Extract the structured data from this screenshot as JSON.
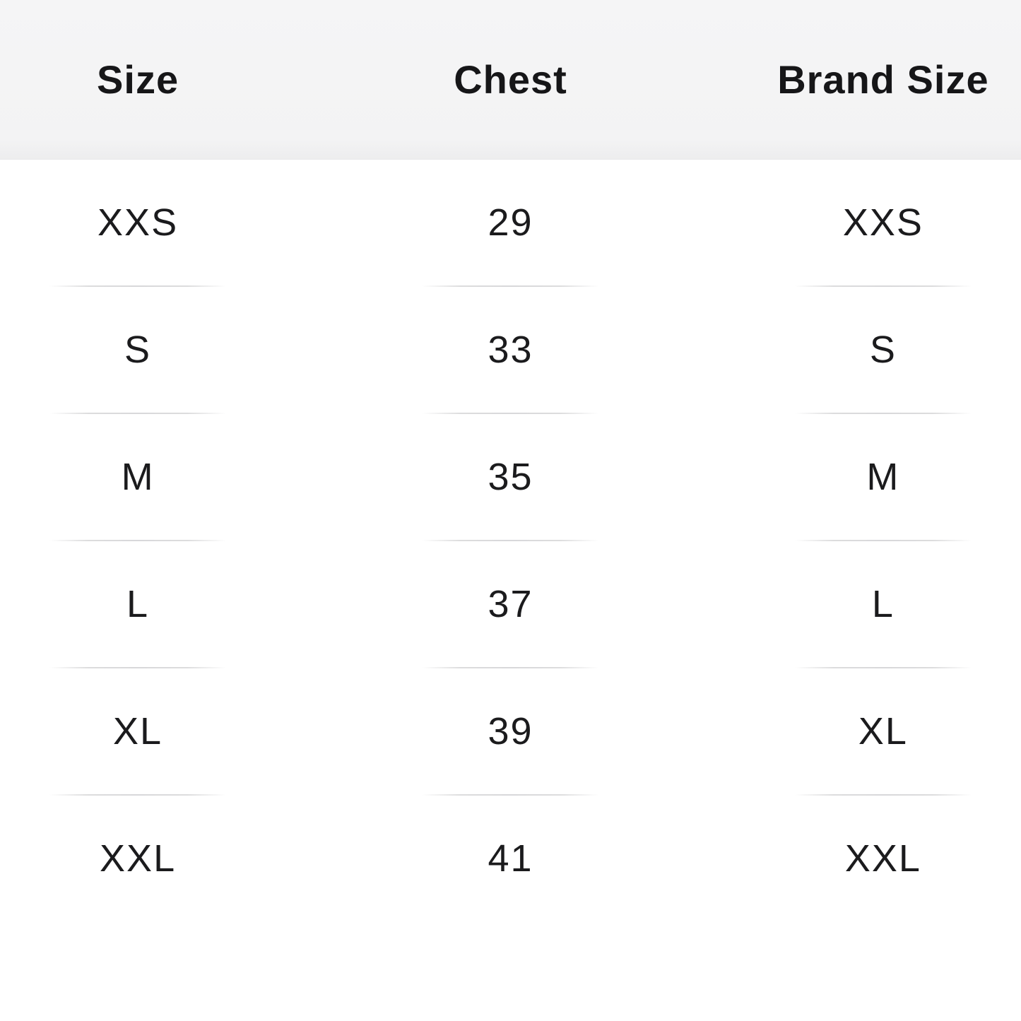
{
  "size_chart": {
    "columns": {
      "size": "Size",
      "chest": "Chest",
      "brand_size": "Brand Size"
    },
    "rows": [
      {
        "size": "XXS",
        "chest": "29",
        "brand_size": "XXS"
      },
      {
        "size": "S",
        "chest": "33",
        "brand_size": "S"
      },
      {
        "size": "M",
        "chest": "35",
        "brand_size": "M"
      },
      {
        "size": "L",
        "chest": "37",
        "brand_size": "L"
      },
      {
        "size": "XL",
        "chest": "39",
        "brand_size": "XL"
      },
      {
        "size": "XXL",
        "chest": "41",
        "brand_size": "XXL"
      }
    ],
    "colors": {
      "header_bg": "#f4f4f5",
      "body_bg": "#ffffff",
      "text": "#1b1b1d",
      "divider": "#dcdcdd"
    }
  }
}
